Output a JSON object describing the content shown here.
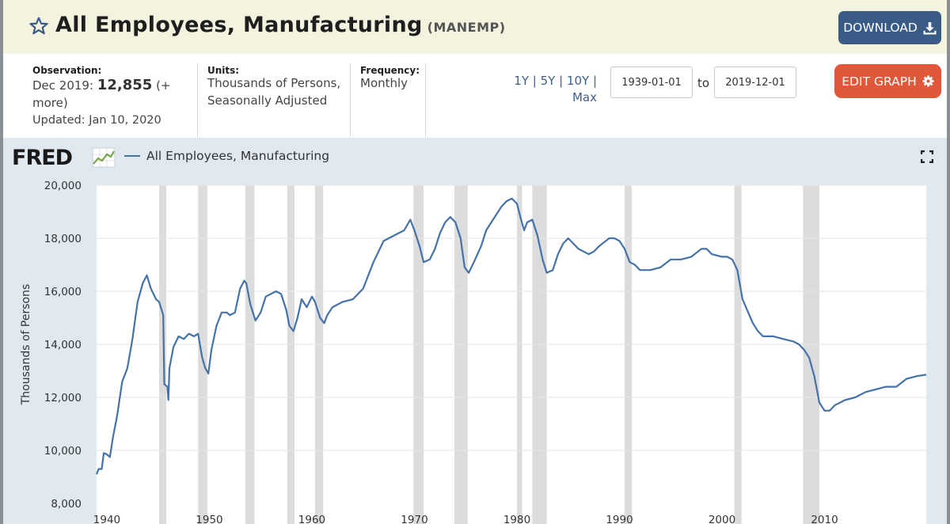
{
  "header": {
    "title": "All Employees, Manufacturing",
    "series_code": "(MANEMP)",
    "download_label": "DOWNLOAD"
  },
  "info": {
    "observation_label": "Observation:",
    "observation_date": "Dec 2019:",
    "observation_value": "12,855",
    "observation_more": "(+ more)",
    "updated": "Updated: Jan 10, 2020",
    "units_label": "Units:",
    "units_value": "Thousands of Persons, Seasonally Adjusted",
    "frequency_label": "Frequency:",
    "frequency_value": "Monthly"
  },
  "range": {
    "periods": [
      "1Y",
      "5Y",
      "10Y",
      "Max"
    ],
    "start": "1939-01-01",
    "to_label": "to",
    "end": "2019-12-01",
    "edit_label": "EDIT GRAPH"
  },
  "brand": {
    "logo": "FRED"
  },
  "chart_data": {
    "type": "line",
    "title": "All Employees, Manufacturing",
    "xlabel": "",
    "ylabel": "Thousands of Persons",
    "xlim": [
      1939.0,
      2019.92
    ],
    "ylim": [
      8000,
      20000
    ],
    "y_ticks": [
      8000,
      10000,
      12000,
      14000,
      16000,
      18000,
      20000
    ],
    "y_tick_labels": [
      "8,000",
      "10,000",
      "12,000",
      "14,000",
      "16,000",
      "18,000",
      "20,000"
    ],
    "x_ticks": [
      1940,
      1950,
      1960,
      1970,
      1980,
      1990,
      2000,
      2010
    ],
    "x_tick_labels": [
      "1940",
      "1950",
      "1960",
      "1970",
      "1980",
      "1990",
      "2000",
      "2010"
    ],
    "color": "#4572a7",
    "recessions": [
      [
        1945.1,
        1945.8
      ],
      [
        1948.9,
        1949.8
      ],
      [
        1953.5,
        1954.4
      ],
      [
        1957.6,
        1958.3
      ],
      [
        1960.3,
        1961.1
      ],
      [
        1969.9,
        1970.9
      ],
      [
        1973.9,
        1975.2
      ],
      [
        1980.0,
        1980.5
      ],
      [
        1981.5,
        1982.9
      ],
      [
        1990.5,
        1991.2
      ],
      [
        2001.2,
        2001.9
      ],
      [
        2007.9,
        2009.5
      ]
    ],
    "series": [
      {
        "name": "All Employees, Manufacturing",
        "x": [
          1939.0,
          1939.2,
          1939.5,
          1939.7,
          1940.0,
          1940.3,
          1940.6,
          1941.0,
          1941.5,
          1942.0,
          1942.5,
          1943.0,
          1943.5,
          1943.9,
          1944.3,
          1944.8,
          1945.1,
          1945.5,
          1945.6,
          1945.9,
          1946.0,
          1946.1,
          1946.5,
          1947.0,
          1947.5,
          1948.0,
          1948.5,
          1948.9,
          1949.3,
          1949.6,
          1949.9,
          1950.2,
          1950.7,
          1951.2,
          1951.7,
          1952.0,
          1952.5,
          1953.0,
          1953.4,
          1953.6,
          1954.0,
          1954.5,
          1955.0,
          1955.5,
          1956.0,
          1956.5,
          1957.0,
          1957.5,
          1957.8,
          1958.2,
          1958.6,
          1959.0,
          1959.5,
          1960.0,
          1960.3,
          1960.8,
          1961.2,
          1961.5,
          1962.0,
          1963.0,
          1964.0,
          1965.0,
          1966.0,
          1967.0,
          1968.0,
          1969.0,
          1969.6,
          1970.0,
          1970.5,
          1970.9,
          1971.5,
          1972.0,
          1972.5,
          1973.0,
          1973.5,
          1974.0,
          1974.5,
          1974.9,
          1975.3,
          1975.8,
          1976.5,
          1977.0,
          1977.5,
          1978.0,
          1978.5,
          1979.0,
          1979.5,
          1980.0,
          1980.4,
          1980.7,
          1981.0,
          1981.5,
          1982.0,
          1982.5,
          1982.9,
          1983.5,
          1984.0,
          1984.5,
          1985.0,
          1986.0,
          1986.5,
          1987.0,
          1987.5,
          1988.0,
          1989.0,
          1989.5,
          1990.0,
          1990.5,
          1991.0,
          1991.5,
          1992.0,
          1993.0,
          1994.0,
          1995.0,
          1996.0,
          1997.0,
          1998.0,
          1998.5,
          1999.0,
          2000.0,
          2000.5,
          2001.0,
          2001.5,
          2002.0,
          2003.0,
          2003.5,
          2004.0,
          2005.0,
          2006.0,
          2007.0,
          2007.5,
          2008.0,
          2008.5,
          2009.0,
          2009.5,
          2010.0,
          2010.5,
          2011.0,
          2012.0,
          2013.0,
          2014.0,
          2015.0,
          2016.0,
          2017.0,
          2018.0,
          2019.0,
          2019.92
        ],
        "values": [
          9100,
          9300,
          9300,
          9900,
          9850,
          9750,
          10500,
          11300,
          12600,
          13100,
          14200,
          15600,
          16300,
          16600,
          16100,
          15700,
          15600,
          15100,
          12500,
          12400,
          11900,
          13100,
          13900,
          14300,
          14200,
          14400,
          14300,
          14400,
          13500,
          13100,
          12900,
          13800,
          14700,
          15200,
          15200,
          15100,
          15200,
          16100,
          16400,
          16300,
          15500,
          14900,
          15200,
          15800,
          15900,
          16000,
          15900,
          15300,
          14700,
          14500,
          15000,
          15700,
          15400,
          15800,
          15600,
          15000,
          14800,
          15100,
          15400,
          15600,
          15700,
          16100,
          17100,
          17900,
          18100,
          18300,
          18700,
          18300,
          17700,
          17100,
          17200,
          17600,
          18200,
          18600,
          18800,
          18600,
          18000,
          16900,
          16700,
          17100,
          17700,
          18300,
          18600,
          18900,
          19200,
          19400,
          19500,
          19300,
          18700,
          18300,
          18600,
          18700,
          18100,
          17200,
          16700,
          16800,
          17400,
          17800,
          18000,
          17600,
          17500,
          17400,
          17500,
          17700,
          18000,
          18000,
          17900,
          17600,
          17100,
          17000,
          16800,
          16800,
          16900,
          17200,
          17200,
          17300,
          17600,
          17600,
          17400,
          17300,
          17300,
          17200,
          16800,
          15700,
          14800,
          14500,
          14300,
          14300,
          14200,
          14100,
          14000,
          13800,
          13500,
          12800,
          11800,
          11500,
          11500,
          11700,
          11900,
          12000,
          12200,
          12300,
          12400,
          12400,
          12700,
          12800,
          12855
        ]
      }
    ]
  }
}
